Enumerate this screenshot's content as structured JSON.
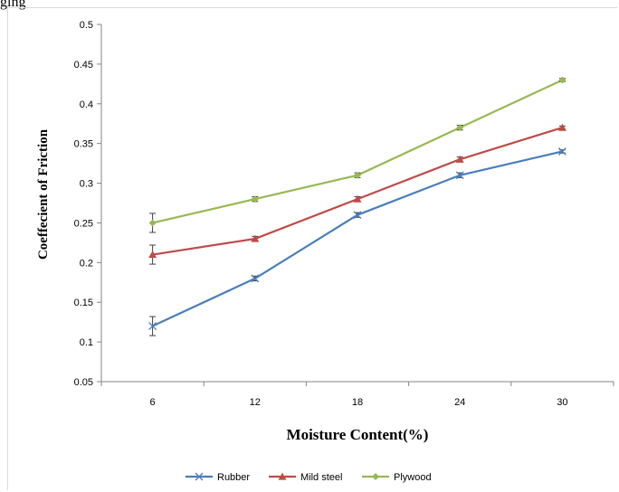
{
  "page_text": {
    "top_fragment": "ging"
  },
  "chart_data": {
    "type": "line",
    "title": "",
    "xlabel": "Moisture Content(%)",
    "ylabel": "Coeffecient of Friction",
    "categories": [
      "6",
      "12",
      "18",
      "24",
      "30"
    ],
    "ylim": [
      0.05,
      0.5
    ],
    "yticks": [
      "0.05",
      "0.1",
      "0.15",
      "0.2",
      "0.25",
      "0.3",
      "0.35",
      "0.4",
      "0.45",
      "0.5"
    ],
    "grid": false,
    "legend_position": "bottom",
    "series": [
      {
        "name": "Rubber",
        "marker": "x",
        "color": "#4a7ebb",
        "values": [
          0.12,
          0.18,
          0.26,
          0.31,
          0.34
        ],
        "errors": [
          0.012,
          0.003,
          0.003,
          0.003,
          0.002
        ]
      },
      {
        "name": "Mild steel",
        "marker": "triangle",
        "color": "#be4b48",
        "values": [
          0.21,
          0.23,
          0.28,
          0.33,
          0.37
        ],
        "errors": [
          0.012,
          0.003,
          0.003,
          0.003,
          0.002
        ]
      },
      {
        "name": "Plywood",
        "marker": "diamond",
        "color": "#98b954",
        "values": [
          0.25,
          0.28,
          0.31,
          0.37,
          0.43
        ],
        "errors": [
          0.012,
          0.003,
          0.003,
          0.003,
          0.002
        ]
      }
    ]
  }
}
